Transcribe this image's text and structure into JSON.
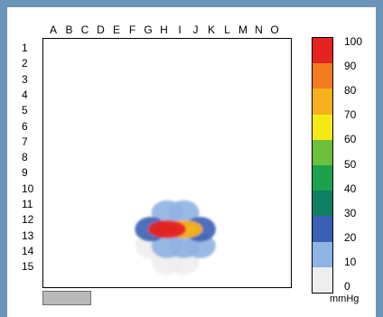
{
  "chart_data": {
    "type": "heatmap",
    "columns": [
      "A",
      "B",
      "C",
      "D",
      "E",
      "F",
      "G",
      "H",
      "I",
      "J",
      "K",
      "L",
      "M",
      "N",
      "O"
    ],
    "rows": [
      "1",
      "2",
      "3",
      "4",
      "5",
      "6",
      "7",
      "8",
      "9",
      "10",
      "11",
      "12",
      "13",
      "14",
      "15"
    ],
    "scale": {
      "ticks": [
        "100",
        "90",
        "80",
        "70",
        "60",
        "50",
        "40",
        "30",
        "20",
        "10",
        "0"
      ],
      "unit": "mmHg",
      "min": 0,
      "max": 100,
      "colors": [
        "#eeeeee",
        "#8fb3e3",
        "#3a60b3",
        "#0f7f61",
        "#1ca24b",
        "#6dbf3e",
        "#f5ea16",
        "#f6b11c",
        "#f27b1f",
        "#e52421"
      ]
    },
    "hotspot": {
      "cells": [
        {
          "col": "H",
          "row": "11",
          "value": 15
        },
        {
          "col": "I",
          "row": "11",
          "value": 18
        },
        {
          "col": "G",
          "row": "12",
          "value": 25
        },
        {
          "col": "H",
          "row": "12",
          "value": 98
        },
        {
          "col": "I",
          "row": "12",
          "value": 70
        },
        {
          "col": "J",
          "row": "12",
          "value": 25
        },
        {
          "col": "G",
          "row": "13",
          "value": 8
        },
        {
          "col": "H",
          "row": "13",
          "value": 18
        },
        {
          "col": "I",
          "row": "13",
          "value": 18
        },
        {
          "col": "J",
          "row": "13",
          "value": 10
        },
        {
          "col": "H",
          "row": "14",
          "value": 5
        },
        {
          "col": "I",
          "row": "14",
          "value": 5
        }
      ]
    }
  }
}
